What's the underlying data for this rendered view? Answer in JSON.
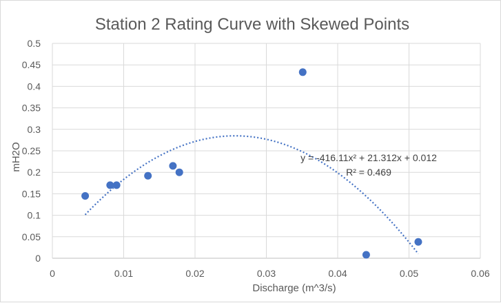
{
  "chart_data": {
    "type": "scatter",
    "title": "Station 2 Rating Curve with Skewed Points",
    "xlabel": "Discharge (m^3/s)",
    "ylabel": "mH2O",
    "xlim": [
      0,
      0.06
    ],
    "ylim": [
      0,
      0.5
    ],
    "x_ticks": [
      "0",
      "0.01",
      "0.02",
      "0.03",
      "0.04",
      "0.05",
      "0.06"
    ],
    "y_ticks": [
      "0",
      "0.05",
      "0.1",
      "0.15",
      "0.2",
      "0.25",
      "0.3",
      "0.35",
      "0.4",
      "0.45",
      "0.5"
    ],
    "grid": true,
    "marker_color": "#4472c4",
    "series": [
      {
        "points": [
          [
            0.0046,
            0.145
          ],
          [
            0.0081,
            0.17
          ],
          [
            0.009,
            0.17
          ],
          [
            0.0134,
            0.192
          ],
          [
            0.0169,
            0.215
          ],
          [
            0.0178,
            0.2
          ],
          [
            0.0351,
            0.433
          ],
          [
            0.044,
            0.008
          ],
          [
            0.0513,
            0.038
          ]
        ]
      }
    ],
    "trendline": {
      "type": "polynomial",
      "order": 2,
      "coefficients": [
        -416.11,
        21.312,
        0.012
      ],
      "x_range": [
        0.0046,
        0.0513
      ],
      "equation": "y = -416.11x² + 21.312x + 0.012",
      "r_squared": "R² = 0.469"
    }
  }
}
